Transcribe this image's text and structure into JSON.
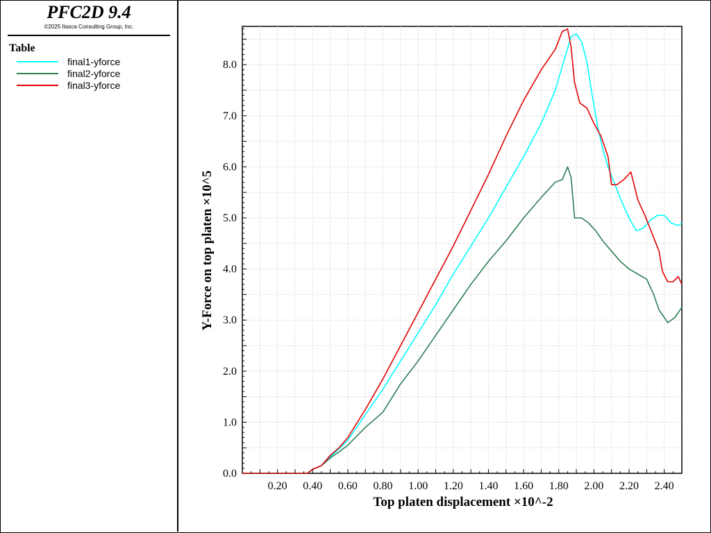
{
  "app": {
    "title": "PFC2D 9.4",
    "copyright": "©2025 Itasca Consulting Group, Inc."
  },
  "legend": {
    "heading": "Table",
    "items": [
      {
        "label": "final1-yforce",
        "color": "#00ffff"
      },
      {
        "label": "final2-yforce",
        "color": "#2e7d55"
      },
      {
        "label": "final3-yforce",
        "color": "#e00000"
      }
    ]
  },
  "chart_data": {
    "type": "line",
    "xlabel": "Top platen displacement ×10^-2",
    "ylabel": "Y-Force on top platen ×10^5",
    "xlim": [
      0.0,
      2.5
    ],
    "ylim": [
      0.0,
      8.75
    ],
    "x_ticks": [
      "0.20",
      "0.40",
      "0.60",
      "0.80",
      "1.00",
      "1.20",
      "1.40",
      "1.60",
      "1.80",
      "2.00",
      "2.20",
      "2.40"
    ],
    "y_ticks": [
      "0.0",
      "1.0",
      "2.0",
      "3.0",
      "4.0",
      "5.0",
      "6.0",
      "7.0",
      "8.0"
    ],
    "grid": true,
    "series": [
      {
        "name": "final1-yforce",
        "color": "#00ffff",
        "x": [
          0.0,
          0.37,
          0.4,
          0.45,
          0.5,
          0.55,
          0.6,
          0.7,
          0.8,
          0.9,
          1.0,
          1.1,
          1.2,
          1.3,
          1.4,
          1.5,
          1.6,
          1.7,
          1.78,
          1.84,
          1.87,
          1.9,
          1.93,
          1.96,
          1.99,
          2.02,
          2.05,
          2.08,
          2.12,
          2.16,
          2.2,
          2.24,
          2.28,
          2.32,
          2.36,
          2.4,
          2.44,
          2.48,
          2.5
        ],
        "y": [
          0.0,
          0.0,
          0.08,
          0.15,
          0.32,
          0.48,
          0.65,
          1.15,
          1.65,
          2.2,
          2.75,
          3.3,
          3.9,
          4.45,
          5.0,
          5.6,
          6.2,
          6.85,
          7.5,
          8.2,
          8.55,
          8.6,
          8.45,
          8.05,
          7.4,
          6.8,
          6.35,
          6.0,
          5.65,
          5.3,
          5.0,
          4.75,
          4.8,
          4.95,
          5.05,
          5.05,
          4.9,
          4.85,
          4.9
        ]
      },
      {
        "name": "final2-yforce",
        "color": "#2e7d55",
        "x": [
          0.0,
          0.37,
          0.4,
          0.45,
          0.5,
          0.55,
          0.6,
          0.7,
          0.8,
          0.9,
          1.0,
          1.1,
          1.2,
          1.3,
          1.4,
          1.5,
          1.6,
          1.7,
          1.78,
          1.82,
          1.85,
          1.87,
          1.89,
          1.93,
          1.97,
          2.01,
          2.05,
          2.1,
          2.15,
          2.2,
          2.25,
          2.3,
          2.34,
          2.37,
          2.4,
          2.42,
          2.46,
          2.5
        ],
        "y": [
          0.0,
          0.0,
          0.08,
          0.15,
          0.3,
          0.42,
          0.55,
          0.9,
          1.2,
          1.75,
          2.2,
          2.7,
          3.2,
          3.7,
          4.15,
          4.55,
          5.0,
          5.4,
          5.7,
          5.75,
          6.0,
          5.8,
          5.0,
          5.0,
          4.9,
          4.75,
          4.55,
          4.35,
          4.15,
          4.0,
          3.9,
          3.8,
          3.5,
          3.2,
          3.05,
          2.95,
          3.05,
          3.25
        ]
      },
      {
        "name": "final3-yforce",
        "color": "#e00000",
        "x": [
          0.0,
          0.37,
          0.4,
          0.45,
          0.5,
          0.55,
          0.6,
          0.7,
          0.8,
          0.9,
          1.0,
          1.1,
          1.2,
          1.3,
          1.4,
          1.5,
          1.6,
          1.7,
          1.78,
          1.82,
          1.85,
          1.87,
          1.89,
          1.92,
          1.96,
          2.0,
          2.04,
          2.08,
          2.1,
          2.13,
          2.17,
          2.21,
          2.25,
          2.29,
          2.33,
          2.37,
          2.39,
          2.42,
          2.45,
          2.48,
          2.5
        ],
        "y": [
          0.0,
          0.0,
          0.08,
          0.15,
          0.35,
          0.5,
          0.7,
          1.25,
          1.85,
          2.5,
          3.15,
          3.8,
          4.45,
          5.15,
          5.85,
          6.6,
          7.3,
          7.9,
          8.3,
          8.65,
          8.7,
          8.35,
          7.65,
          7.25,
          7.15,
          6.85,
          6.6,
          6.2,
          5.65,
          5.65,
          5.75,
          5.9,
          5.35,
          5.05,
          4.7,
          4.35,
          3.95,
          3.75,
          3.75,
          3.85,
          3.7
        ]
      }
    ]
  }
}
